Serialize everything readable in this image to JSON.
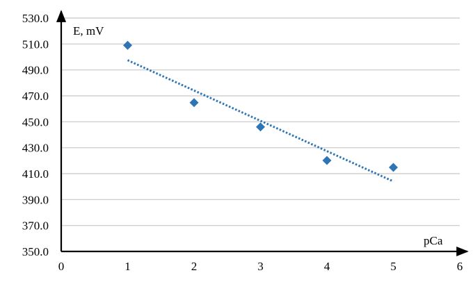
{
  "chart_data": {
    "type": "scatter",
    "title": "",
    "xlabel": "pCa",
    "ylabel": "E, mV",
    "xlim": [
      0,
      6
    ],
    "ylim": [
      350,
      530
    ],
    "x_ticks": [
      "0",
      "1",
      "2",
      "3",
      "4",
      "5",
      "6"
    ],
    "y_ticks": [
      "350.0",
      "370.0",
      "390.0",
      "410.0",
      "430.0",
      "450.0",
      "470.0",
      "490.0",
      "510.0",
      "530.0"
    ],
    "grid": "horizontal",
    "series": [
      {
        "x": [
          1,
          2,
          3,
          4,
          5
        ],
        "y": [
          509.0,
          464.8,
          446.0,
          420.2,
          414.8
        ],
        "marker": "diamond",
        "color": "#2e75b6"
      }
    ],
    "trendline": {
      "style": "dotted",
      "color": "#2e75b6",
      "x": [
        1,
        5
      ],
      "y": [
        497.5,
        404.0
      ]
    }
  }
}
